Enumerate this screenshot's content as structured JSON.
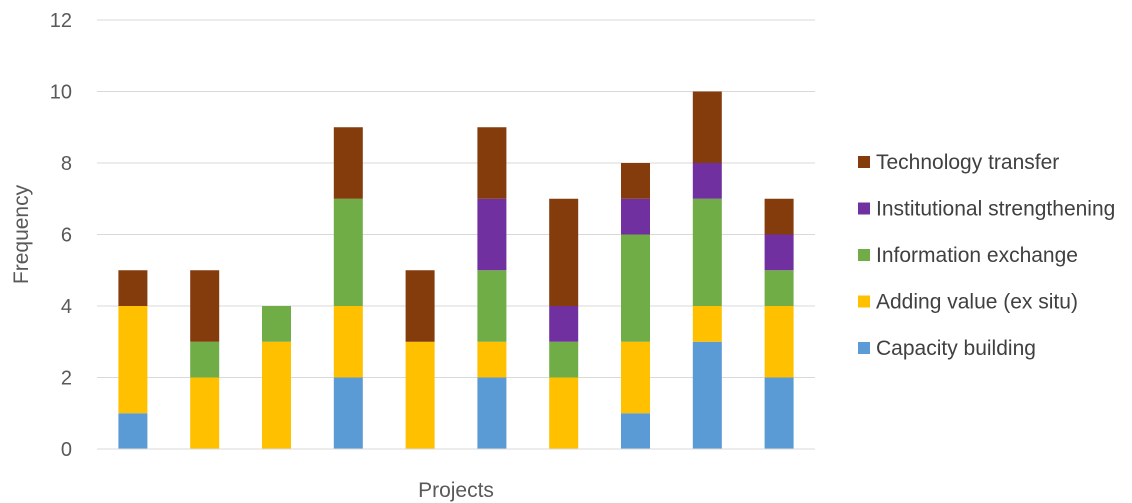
{
  "chart_data": {
    "type": "bar",
    "stacked": true,
    "xlabel": "Projects",
    "ylabel": "Frequency",
    "ylim": [
      0,
      12
    ],
    "yticks": [
      0,
      2,
      4,
      6,
      8,
      10,
      12
    ],
    "grid": true,
    "legend_position": "right",
    "categories": [
      "",
      "",
      "",
      "",
      "",
      "",
      "",
      "",
      "",
      ""
    ],
    "series": [
      {
        "name": "Capacity building",
        "color": "#5b9bd5",
        "values": [
          1,
          0,
          0,
          2,
          0,
          2,
          0,
          1,
          3,
          2
        ]
      },
      {
        "name": "Adding value (ex situ)",
        "color": "#ffc000",
        "values": [
          3,
          2,
          3,
          2,
          3,
          1,
          2,
          2,
          1,
          2
        ]
      },
      {
        "name": "Information exchange",
        "color": "#70ad47",
        "values": [
          0,
          1,
          1,
          3,
          0,
          2,
          1,
          3,
          3,
          1
        ]
      },
      {
        "name": "Institutional strengthening",
        "color": "#7030a0",
        "values": [
          0,
          0,
          0,
          0,
          0,
          2,
          1,
          1,
          1,
          1
        ]
      },
      {
        "name": "Technology transfer",
        "color": "#843c0c",
        "values": [
          1,
          2,
          0,
          2,
          2,
          2,
          3,
          1,
          2,
          1
        ]
      }
    ],
    "legend_order": [
      "Technology transfer",
      "Institutional strengthening",
      "Information exchange",
      "Adding value (ex situ)",
      "Capacity building"
    ]
  }
}
